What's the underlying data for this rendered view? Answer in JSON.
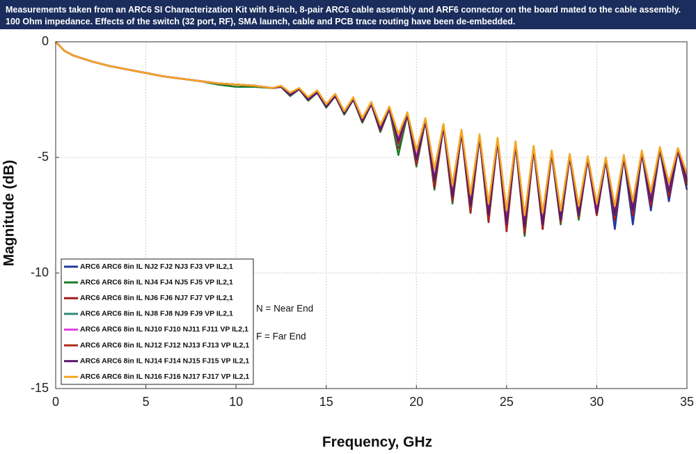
{
  "chart_data": {
    "type": "line",
    "header": [
      "Measurements taken from an ARC6 SI Characterization Kit with 8-inch, 8-pair ARC6 cable assembly and ARF6 connector on the board mated to the cable assembly.",
      "100 Ohm impedance. Effects of the switch (32 port, RF), SMA launch, cable and PCB trace routing have been de-embedded."
    ],
    "x_label": "Frequency, GHz",
    "y_label": "Magnitude (dB)",
    "annotations": [
      "N = Near End",
      "F = Far End"
    ],
    "xlim": [
      0,
      35
    ],
    "ylim": [
      -15,
      0
    ],
    "xticks": [
      0,
      5,
      10,
      15,
      20,
      25,
      30,
      35
    ],
    "yticks": [
      0,
      -5,
      -10,
      -15
    ],
    "grid": true,
    "legend": "lower-left",
    "x": [
      0,
      0.5,
      1,
      2,
      3,
      4,
      5,
      6,
      7,
      8,
      9,
      10,
      11,
      12,
      12.5,
      13,
      13.5,
      14,
      14.5,
      15,
      15.5,
      16,
      16.5,
      17,
      17.5,
      18,
      18.5,
      19,
      19.5,
      20,
      20.5,
      21,
      21.5,
      22,
      22.5,
      23,
      23.5,
      24,
      24.5,
      25,
      25.5,
      26,
      26.5,
      27,
      27.5,
      28,
      28.5,
      29,
      29.5,
      30,
      30.5,
      31,
      31.5,
      32,
      32.5,
      33,
      33.5,
      34,
      34.5,
      35
    ],
    "series": [
      {
        "name": "ARC6 ARC6 8in IL NJ2 FJ2 NJ3 FJ3 VP IL2,1",
        "color": "#1f3a9e",
        "values": [
          0,
          -0.4,
          -0.6,
          -0.85,
          -1.05,
          -1.2,
          -1.35,
          -1.5,
          -1.6,
          -1.7,
          -1.8,
          -1.85,
          -1.9,
          -2.0,
          -1.95,
          -2.3,
          -2.05,
          -2.5,
          -2.2,
          -2.8,
          -2.35,
          -3.1,
          -2.5,
          -3.4,
          -2.7,
          -3.8,
          -2.9,
          -4.4,
          -3.15,
          -5.3,
          -3.4,
          -6.2,
          -3.65,
          -6.8,
          -3.9,
          -7.2,
          -4.1,
          -7.6,
          -4.25,
          -8.0,
          -4.4,
          -8.2,
          -4.6,
          -8.0,
          -4.8,
          -7.8,
          -4.95,
          -7.6,
          -5.05,
          -7.5,
          -5.1,
          -8.1,
          -5.0,
          -7.9,
          -4.8,
          -7.3,
          -4.65,
          -6.9,
          -4.7,
          -6.4
        ]
      },
      {
        "name": "ARC6 ARC6 8in IL NJ4 FJ4 NJ5 FJ5 VP IL2,1",
        "color": "#1e7d2c",
        "values": [
          0,
          -0.4,
          -0.6,
          -0.85,
          -1.05,
          -1.2,
          -1.35,
          -1.5,
          -1.6,
          -1.7,
          -1.85,
          -1.95,
          -1.95,
          -2.0,
          -1.95,
          -2.35,
          -2.05,
          -2.55,
          -2.2,
          -2.85,
          -2.35,
          -3.15,
          -2.5,
          -3.5,
          -2.7,
          -3.9,
          -2.9,
          -4.9,
          -3.15,
          -5.4,
          -3.4,
          -6.4,
          -3.65,
          -7.0,
          -3.9,
          -7.4,
          -4.1,
          -7.8,
          -4.25,
          -8.1,
          -4.4,
          -8.4,
          -4.6,
          -8.1,
          -4.8,
          -7.9,
          -4.95,
          -7.7,
          -5.05,
          -7.5,
          -5.1,
          -7.7,
          -5.0,
          -7.4,
          -4.8,
          -7.0,
          -4.65,
          -6.6,
          -4.7,
          -6.1
        ]
      },
      {
        "name": "ARC6 ARC6 8in IL NJ6 FJ6 NJ7 FJ7 VP IL2,1",
        "color": "#a01818",
        "values": [
          0,
          -0.4,
          -0.6,
          -0.85,
          -1.05,
          -1.2,
          -1.35,
          -1.5,
          -1.6,
          -1.7,
          -1.8,
          -1.85,
          -1.9,
          -2.0,
          -1.95,
          -2.3,
          -2.05,
          -2.5,
          -2.2,
          -2.8,
          -2.35,
          -3.1,
          -2.5,
          -3.45,
          -2.7,
          -3.85,
          -2.9,
          -4.6,
          -3.15,
          -5.3,
          -3.4,
          -6.3,
          -3.65,
          -6.9,
          -3.9,
          -7.4,
          -4.1,
          -7.8,
          -4.25,
          -8.2,
          -4.4,
          -8.3,
          -4.6,
          -8.1,
          -4.8,
          -7.8,
          -4.95,
          -7.6,
          -5.05,
          -7.5,
          -5.1,
          -7.7,
          -5.0,
          -7.5,
          -4.8,
          -7.1,
          -4.65,
          -6.7,
          -4.7,
          -6.2
        ]
      },
      {
        "name": "ARC6 ARC6 8in IL NJ8 FJ8 NJ9 FJ9 VP IL2,1",
        "color": "#2e8b7a",
        "values": [
          0,
          -0.4,
          -0.6,
          -0.85,
          -1.05,
          -1.2,
          -1.35,
          -1.5,
          -1.6,
          -1.7,
          -1.8,
          -1.85,
          -1.9,
          -2.0,
          -1.95,
          -2.3,
          -2.05,
          -2.5,
          -2.2,
          -2.8,
          -2.35,
          -3.1,
          -2.5,
          -3.4,
          -2.7,
          -3.8,
          -2.9,
          -4.5,
          -3.15,
          -5.2,
          -3.4,
          -6.1,
          -3.65,
          -6.8,
          -3.9,
          -7.3,
          -4.1,
          -7.7,
          -4.25,
          -8.0,
          -4.4,
          -8.1,
          -4.6,
          -7.9,
          -4.8,
          -7.7,
          -4.95,
          -7.5,
          -5.05,
          -7.4,
          -5.1,
          -7.5,
          -5.0,
          -7.3,
          -4.8,
          -6.9,
          -4.65,
          -6.5,
          -4.7,
          -6.0
        ]
      },
      {
        "name": "ARC6 ARC6 8in IL NJ10 FJ10 NJ11 FJ11 VP IL2,1",
        "color": "#e040e0",
        "values": [
          0,
          -0.4,
          -0.6,
          -0.85,
          -1.05,
          -1.2,
          -1.35,
          -1.5,
          -1.6,
          -1.7,
          -1.8,
          -1.85,
          -1.9,
          -2.0,
          -1.95,
          -2.25,
          -2.0,
          -2.45,
          -2.15,
          -2.75,
          -2.3,
          -3.05,
          -2.45,
          -3.35,
          -2.65,
          -3.7,
          -2.85,
          -4.2,
          -3.1,
          -5.0,
          -3.35,
          -5.9,
          -3.6,
          -6.6,
          -3.85,
          -7.0,
          -4.05,
          -7.4,
          -4.2,
          -7.7,
          -4.35,
          -7.9,
          -4.55,
          -7.8,
          -4.75,
          -7.6,
          -4.9,
          -7.4,
          -5.0,
          -7.3,
          -5.05,
          -7.4,
          -4.95,
          -7.2,
          -4.75,
          -6.8,
          -4.6,
          -6.4,
          -4.65,
          -5.9
        ]
      },
      {
        "name": "ARC6 ARC6 8in IL NJ12 FJ12 NJ13 FJ13 VP IL2,1",
        "color": "#b02a1a",
        "values": [
          0,
          -0.4,
          -0.6,
          -0.85,
          -1.05,
          -1.2,
          -1.35,
          -1.5,
          -1.6,
          -1.7,
          -1.8,
          -1.85,
          -1.9,
          -2.0,
          -1.95,
          -2.3,
          -2.05,
          -2.5,
          -2.2,
          -2.8,
          -2.35,
          -3.1,
          -2.5,
          -3.4,
          -2.7,
          -3.8,
          -2.9,
          -4.4,
          -3.15,
          -5.2,
          -3.4,
          -6.1,
          -3.65,
          -6.9,
          -3.9,
          -7.3,
          -4.1,
          -7.7,
          -4.25,
          -8.1,
          -4.4,
          -8.2,
          -4.6,
          -8.0,
          -4.8,
          -7.8,
          -4.95,
          -7.6,
          -5.05,
          -7.5,
          -5.1,
          -7.6,
          -5.0,
          -7.4,
          -4.8,
          -7.0,
          -4.65,
          -6.6,
          -4.7,
          -6.1
        ]
      },
      {
        "name": "ARC6 ARC6 8in IL NJ14 FJ14 NJ15 FJ15 VP IL2,1",
        "color": "#5a1a6e",
        "values": [
          0,
          -0.4,
          -0.6,
          -0.85,
          -1.05,
          -1.2,
          -1.35,
          -1.5,
          -1.6,
          -1.7,
          -1.8,
          -1.85,
          -1.9,
          -2.0,
          -1.95,
          -2.3,
          -2.05,
          -2.5,
          -2.2,
          -2.8,
          -2.35,
          -3.1,
          -2.5,
          -3.4,
          -2.7,
          -3.8,
          -2.9,
          -4.3,
          -3.15,
          -5.1,
          -3.4,
          -6.0,
          -3.65,
          -6.7,
          -3.9,
          -7.1,
          -4.1,
          -7.5,
          -4.25,
          -7.9,
          -4.4,
          -8.0,
          -4.6,
          -7.9,
          -4.8,
          -7.7,
          -4.95,
          -7.5,
          -5.05,
          -7.4,
          -5.1,
          -7.5,
          -5.0,
          -7.3,
          -4.8,
          -6.9,
          -4.65,
          -6.5,
          -4.7,
          -6.0
        ]
      },
      {
        "name": "ARC6 ARC6 8in IL NJ16 FJ16 NJ17 FJ17 VP IL2,1",
        "color": "#f5a623",
        "values": [
          0,
          -0.4,
          -0.6,
          -0.85,
          -1.05,
          -1.2,
          -1.35,
          -1.5,
          -1.6,
          -1.7,
          -1.8,
          -1.85,
          -1.9,
          -2.0,
          -1.9,
          -2.2,
          -2.0,
          -2.4,
          -2.1,
          -2.7,
          -2.25,
          -3.0,
          -2.4,
          -3.3,
          -2.6,
          -3.6,
          -2.8,
          -4.0,
          -3.05,
          -4.7,
          -3.3,
          -5.5,
          -3.55,
          -6.2,
          -3.8,
          -6.6,
          -4.0,
          -7.0,
          -4.15,
          -7.3,
          -4.3,
          -7.5,
          -4.5,
          -7.4,
          -4.7,
          -7.3,
          -4.85,
          -7.1,
          -4.95,
          -7.0,
          -5.0,
          -7.1,
          -4.9,
          -6.9,
          -4.7,
          -6.5,
          -4.55,
          -6.1,
          -4.6,
          -5.7
        ]
      }
    ]
  }
}
